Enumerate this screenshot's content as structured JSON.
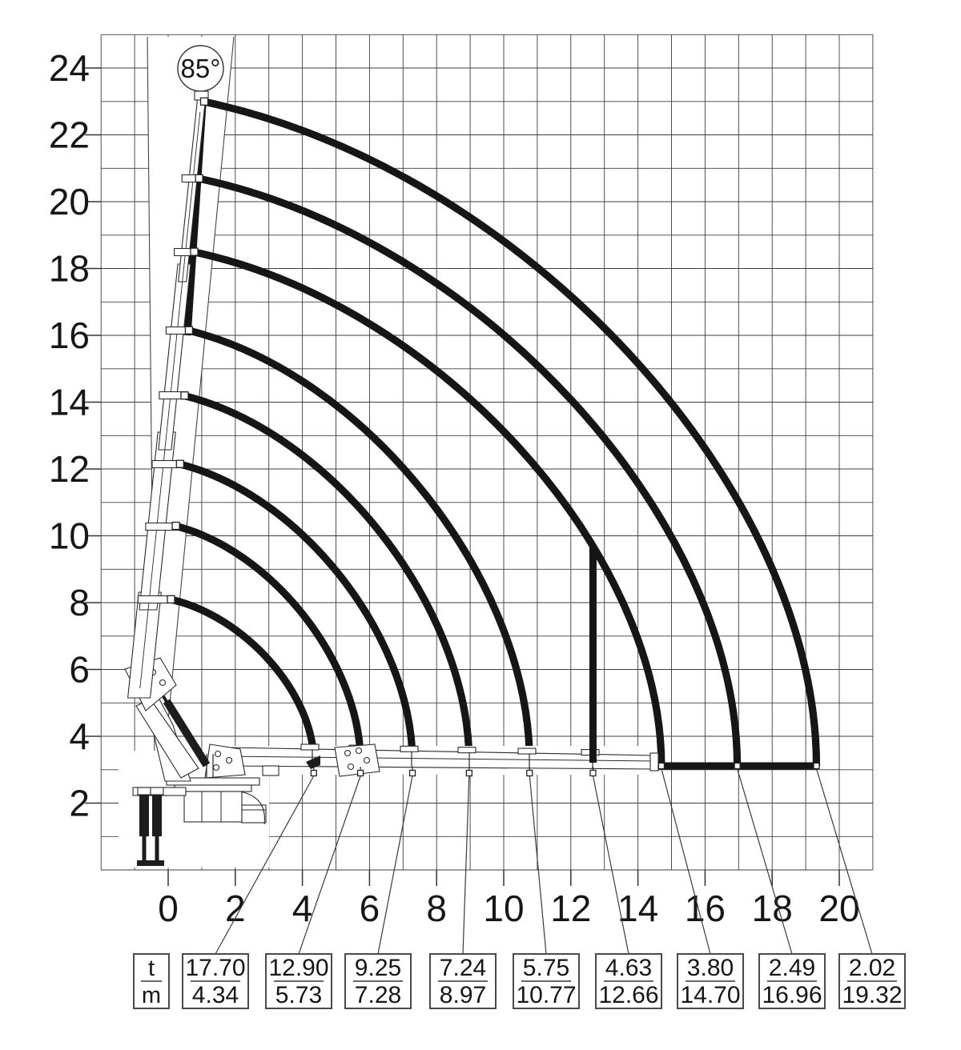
{
  "chart_data": {
    "type": "line",
    "title": "",
    "xlabel": "",
    "ylabel": "",
    "grid": true,
    "x_range_m": [
      -2,
      21
    ],
    "y_range_m": [
      0,
      25
    ],
    "x_tick_labels": [
      "0",
      "2",
      "4",
      "6",
      "8",
      "10",
      "12",
      "14",
      "16",
      "18",
      "20"
    ],
    "x_tick_values": [
      0,
      2,
      4,
      6,
      8,
      10,
      12,
      14,
      16,
      18,
      20
    ],
    "y_tick_labels": [
      "24",
      "22",
      "20",
      "18",
      "16",
      "14",
      "12",
      "10",
      "8",
      "6",
      "4",
      "2"
    ],
    "y_tick_values": [
      24,
      22,
      20,
      18,
      16,
      14,
      12,
      10,
      8,
      6,
      4,
      2
    ],
    "angle_label": "85°",
    "boom_angle_deg": 85,
    "legend": {
      "numerator": "t",
      "denominator": "m"
    },
    "capacity_points": [
      {
        "load_t": 17.7,
        "outreach_m": 4.34
      },
      {
        "load_t": 12.9,
        "outreach_m": 5.73
      },
      {
        "load_t": 9.25,
        "outreach_m": 7.28
      },
      {
        "load_t": 7.24,
        "outreach_m": 8.97
      },
      {
        "load_t": 5.75,
        "outreach_m": 10.77
      },
      {
        "load_t": 4.63,
        "outreach_m": 12.66
      },
      {
        "load_t": 3.8,
        "outreach_m": 14.7
      },
      {
        "load_t": 2.49,
        "outreach_m": 16.96
      },
      {
        "load_t": 2.02,
        "outreach_m": 19.32
      }
    ],
    "envelope_arcs": [
      {
        "tip_height_m": 8.1,
        "outreach_m": 4.34
      },
      {
        "tip_height_m": 10.3,
        "outreach_m": 5.73
      },
      {
        "tip_height_m": 12.15,
        "outreach_m": 7.28
      },
      {
        "tip_height_m": 14.2,
        "outreach_m": 8.97
      },
      {
        "tip_height_m": 16.15,
        "outreach_m": 10.77
      },
      {
        "tip_height_m": 18.5,
        "outreach_m": 14.7
      },
      {
        "tip_height_m": 20.7,
        "outreach_m": 16.96
      },
      {
        "tip_height_m": 23.0,
        "outreach_m": 19.32
      }
    ],
    "vertical_limit": {
      "outreach_m": 12.66,
      "top_height_m": 9.7,
      "bottom_height_m": 3.2
    },
    "baseline_span_m": [
      14.7,
      19.32
    ]
  },
  "load_table": {
    "entries": [
      {
        "t": "17.70",
        "m": "4.34"
      },
      {
        "t": "12.90",
        "m": "5.73"
      },
      {
        "t": "9.25",
        "m": "7.28"
      },
      {
        "t": "7.24",
        "m": "8.97"
      },
      {
        "t": "5.75",
        "m": "10.77"
      },
      {
        "t": "4.63",
        "m": "12.66"
      },
      {
        "t": "3.80",
        "m": "14.70"
      },
      {
        "t": "2.49",
        "m": "16.96"
      },
      {
        "t": "2.02",
        "m": "19.32"
      }
    ]
  },
  "colors": {
    "ink": "#161616",
    "grid": "#3d3d3d",
    "thin": "#2a2a2a",
    "box_border": "#4a4a4a",
    "paper": "#ffffff"
  }
}
